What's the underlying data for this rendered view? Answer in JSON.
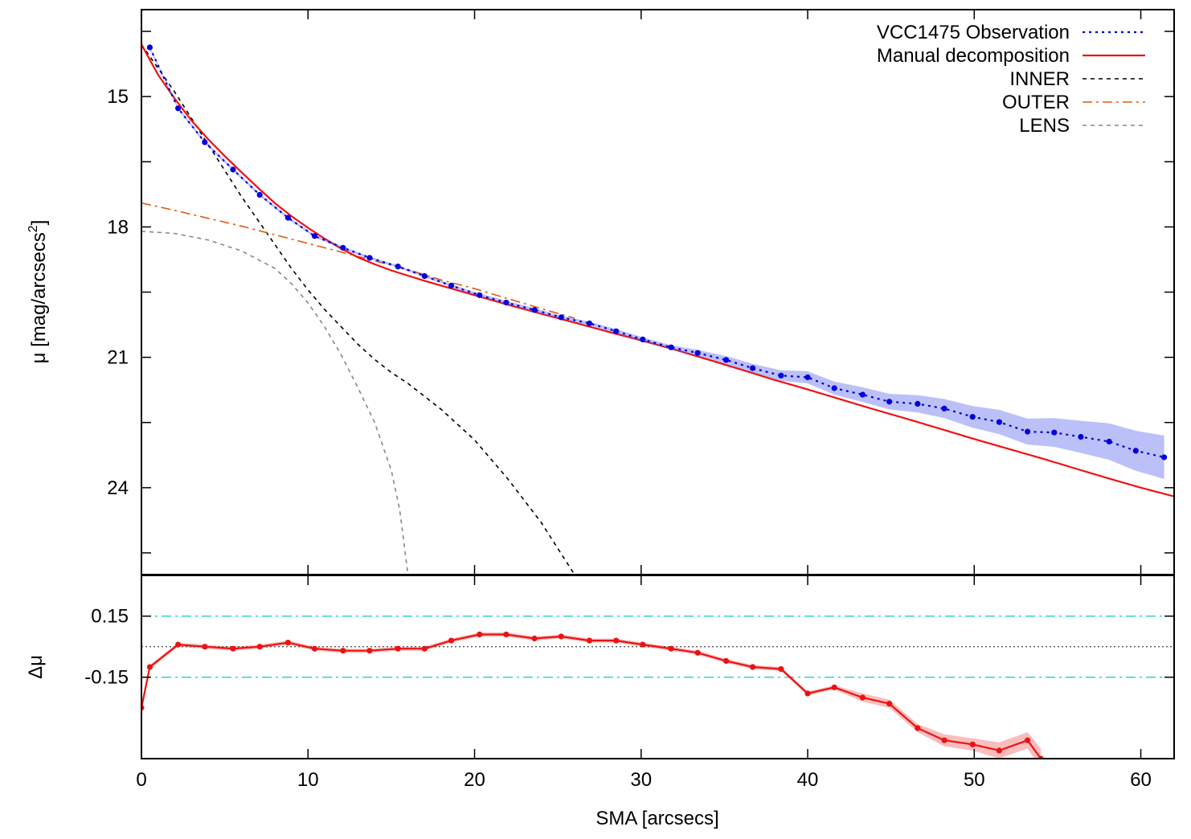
{
  "chart_data": [
    {
      "type": "line",
      "xlabel": "SMA [arcsecs]",
      "ylabel": "μ [mag/arcsecs",
      "ylabel_superscript": "2",
      "ylabel_close": "]",
      "xlim": [
        0,
        62
      ],
      "ylim": [
        26.0,
        13.0
      ],
      "y_inverted": true,
      "yticks": [
        15,
        18,
        21,
        24
      ],
      "xticks": [
        0,
        10,
        20,
        30,
        40,
        50,
        60
      ],
      "legend_position": "top-right",
      "series": [
        {
          "name": "VCC1475 Observation",
          "style": "dotted",
          "color": "#0000e0",
          "markers": true,
          "x": [
            0.5,
            2.2,
            3.8,
            5.5,
            7.1,
            8.8,
            10.4,
            12.1,
            13.7,
            15.4,
            17.0,
            18.6,
            20.3,
            21.9,
            23.6,
            25.2,
            26.9,
            28.5,
            30.1,
            31.8,
            33.4,
            35.1,
            36.7,
            38.4,
            40.0,
            41.6,
            43.3,
            44.9,
            46.6,
            48.2,
            49.9,
            51.5,
            53.2,
            54.8,
            56.4,
            58.1,
            59.7,
            61.4
          ],
          "y": [
            13.87,
            15.27,
            16.05,
            16.68,
            17.26,
            17.79,
            18.21,
            18.48,
            18.71,
            18.91,
            19.13,
            19.35,
            19.57,
            19.74,
            19.91,
            20.08,
            20.22,
            20.4,
            20.59,
            20.77,
            20.9,
            21.06,
            21.25,
            21.42,
            21.46,
            21.71,
            21.86,
            22.02,
            22.07,
            22.18,
            22.37,
            22.49,
            22.71,
            22.73,
            22.83,
            22.94,
            23.15,
            23.3
          ],
          "uncertainty_band": [
            0.03,
            0.03,
            0.03,
            0.03,
            0.03,
            0.03,
            0.03,
            0.03,
            0.03,
            0.03,
            0.03,
            0.03,
            0.04,
            0.04,
            0.04,
            0.04,
            0.04,
            0.05,
            0.05,
            0.05,
            0.07,
            0.09,
            0.1,
            0.12,
            0.14,
            0.15,
            0.17,
            0.18,
            0.2,
            0.22,
            0.25,
            0.28,
            0.3,
            0.33,
            0.37,
            0.42,
            0.46,
            0.5
          ]
        },
        {
          "name": "Manual decomposition",
          "style": "solid",
          "color": "#ee1111",
          "x": [
            0,
            1,
            2,
            3,
            4,
            5,
            6,
            7,
            8,
            9,
            10,
            11,
            12,
            13,
            14,
            15,
            16,
            17,
            18,
            20,
            22,
            24,
            26,
            28,
            30,
            32,
            34,
            36,
            38,
            40,
            42,
            44,
            46,
            48,
            50,
            52,
            54,
            56,
            58,
            60,
            62
          ],
          "y": [
            13.8,
            14.5,
            15.05,
            15.55,
            15.98,
            16.37,
            16.74,
            17.1,
            17.45,
            17.75,
            18.02,
            18.27,
            18.5,
            18.7,
            18.86,
            19.0,
            19.12,
            19.24,
            19.35,
            19.57,
            19.79,
            20.0,
            20.2,
            20.41,
            20.61,
            20.82,
            21.05,
            21.28,
            21.52,
            21.74,
            21.97,
            22.2,
            22.42,
            22.65,
            22.88,
            23.1,
            23.32,
            23.55,
            23.78,
            24.0,
            24.2
          ]
        },
        {
          "name": "INNER",
          "style": "dashed",
          "color": "#000000",
          "x": [
            0,
            2,
            4,
            6,
            8,
            9,
            10,
            11,
            12,
            13,
            14,
            15,
            16,
            18,
            20,
            22,
            24,
            26
          ],
          "y": [
            13.8,
            14.9,
            16.1,
            17.3,
            18.4,
            18.95,
            19.45,
            19.9,
            20.3,
            20.7,
            21.05,
            21.35,
            21.6,
            22.2,
            22.9,
            23.8,
            24.8,
            26.0
          ],
          "uncertainty_band": null
        },
        {
          "name": "OUTER",
          "style": "dash-dot",
          "color": "#e05a10",
          "x": [
            0,
            2,
            4,
            6,
            8,
            10,
            12,
            14,
            16,
            17,
            18,
            20,
            22,
            24,
            26
          ],
          "y": [
            17.45,
            17.62,
            17.8,
            17.98,
            18.18,
            18.38,
            18.58,
            18.78,
            18.98,
            19.1,
            19.22,
            19.42,
            19.65,
            19.88,
            20.1
          ]
        },
        {
          "name": "LENS",
          "style": "dashed",
          "color": "#888888",
          "x": [
            0,
            2,
            4,
            6,
            8,
            9,
            10,
            11,
            12,
            13,
            14,
            15,
            15.5,
            16
          ],
          "y": [
            18.1,
            18.15,
            18.3,
            18.55,
            18.95,
            19.3,
            19.75,
            20.3,
            20.95,
            21.7,
            22.5,
            23.6,
            24.5,
            26.0
          ]
        }
      ]
    },
    {
      "type": "line",
      "xlabel": "SMA [arcsecs]",
      "ylabel": "Δμ",
      "xlim": [
        0,
        62
      ],
      "ylim": [
        -0.55,
        0.35
      ],
      "yticks": [
        0.15,
        -0.15
      ],
      "ytick_labels": [
        "0.15",
        "-0.15"
      ],
      "xticks": [
        0,
        10,
        20,
        30,
        40,
        50,
        60
      ],
      "reference_lines": [
        {
          "y": 0.15,
          "color": "#20d0d0",
          "style": "dash-dot"
        },
        {
          "y": -0.15,
          "color": "#20d0d0",
          "style": "dash-dot"
        },
        {
          "y": 0.0,
          "color": "#555555",
          "style": "dotted"
        }
      ],
      "series": [
        {
          "name": "residuals",
          "style": "solid",
          "color": "#ee1111",
          "markers": true,
          "x": [
            0,
            0.5,
            2.2,
            3.8,
            5.5,
            7.1,
            8.8,
            10.4,
            12.1,
            13.7,
            15.4,
            17.0,
            18.6,
            20.3,
            21.9,
            23.6,
            25.2,
            26.9,
            28.5,
            30.1,
            31.8,
            33.4,
            35.1,
            36.7,
            38.4,
            40.0,
            41.6,
            43.3,
            44.9,
            46.6,
            48.2,
            49.9,
            51.5,
            53.2,
            54.0
          ],
          "y": [
            -0.3,
            -0.1,
            0.01,
            0.0,
            -0.01,
            0.0,
            0.02,
            -0.01,
            -0.02,
            -0.02,
            -0.01,
            -0.01,
            0.03,
            0.06,
            0.06,
            0.04,
            0.05,
            0.03,
            0.03,
            0.01,
            -0.01,
            -0.03,
            -0.07,
            -0.1,
            -0.11,
            -0.23,
            -0.2,
            -0.25,
            -0.28,
            -0.4,
            -0.46,
            -0.48,
            -0.51,
            -0.46,
            -0.55
          ],
          "uncertainty_band": [
            0.02,
            0.01,
            0.01,
            0.01,
            0.01,
            0.01,
            0.01,
            0.01,
            0.01,
            0.01,
            0.01,
            0.01,
            0.01,
            0.01,
            0.01,
            0.01,
            0.01,
            0.01,
            0.01,
            0.01,
            0.01,
            0.01,
            0.01,
            0.01,
            0.01,
            0.01,
            0.01,
            0.02,
            0.02,
            0.02,
            0.03,
            0.03,
            0.04,
            0.04,
            0.05
          ]
        }
      ]
    }
  ]
}
